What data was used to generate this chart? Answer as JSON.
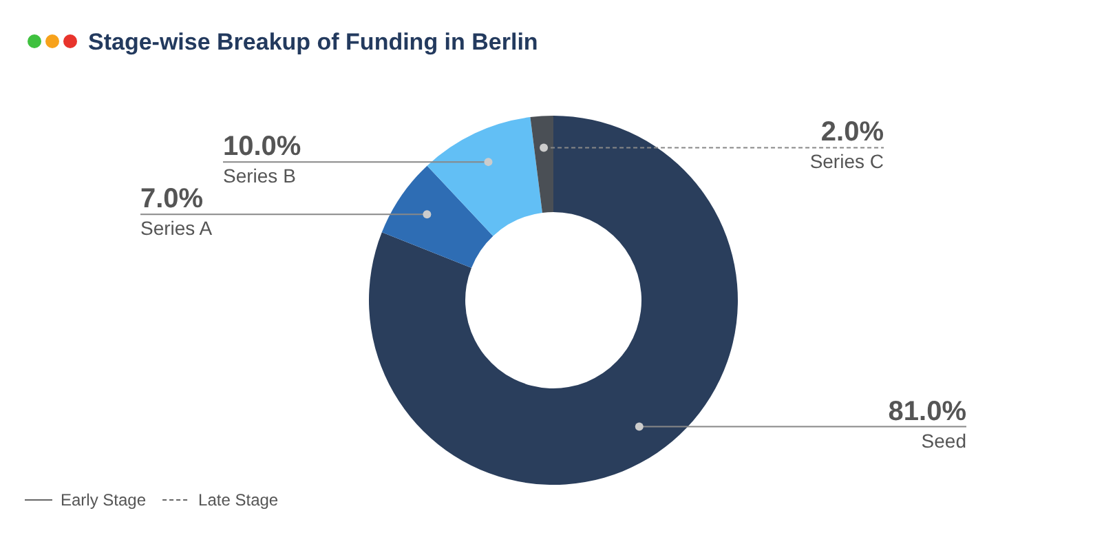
{
  "chart_data": {
    "type": "donut",
    "title": "Stage-wise Breakup of Funding in Berlin",
    "categories": [
      "Seed",
      "Series A",
      "Series B",
      "Series C"
    ],
    "values": [
      81,
      7,
      10,
      2
    ],
    "value_labels": [
      "81.0%",
      "7.0%",
      "10.0%",
      "2.0%"
    ],
    "colors": [
      "#2a3e5c",
      "#2e6db4",
      "#62bff5",
      "#4a4f55"
    ],
    "line_style": [
      "solid",
      "solid",
      "solid",
      "dashed"
    ],
    "annotations": [
      "Early Stage",
      "Late Stage"
    ]
  }
}
